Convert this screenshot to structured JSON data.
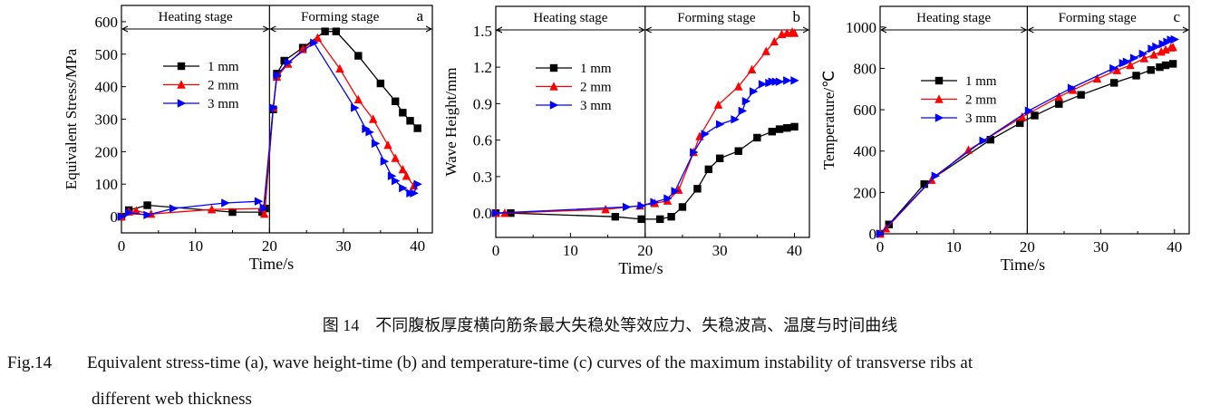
{
  "caption": {
    "chinese": "图 14　不同腹板厚度横向筋条最大失稳处等效应力、失稳波高、温度与时间曲线",
    "label": "Fig.14",
    "english_line1": "Equivalent stress-time (a), wave height-time (b) and temperature-time (c) curves of the maximum instability of transverse ribs at",
    "english_line2": "different web thickness"
  },
  "colors": {
    "1 mm": "#000000",
    "2 mm": "#ff0000",
    "3 mm": "#0000ff"
  },
  "chart_data": [
    {
      "type": "line",
      "panel": "a",
      "xlabel": "Time/s",
      "ylabel": "Equivalent Stress/MPa",
      "xlim": [
        0,
        42
      ],
      "ylim": [
        -50,
        650
      ],
      "xticks": [
        0,
        10,
        20,
        30,
        40
      ],
      "yticks": [
        0,
        100,
        200,
        300,
        400,
        500,
        600
      ],
      "stage_labels": [
        "Heating stage",
        "Forming stage"
      ],
      "stage_boundary": 20,
      "legend": "upper-left",
      "series": [
        {
          "name": "1 mm",
          "marker": "square",
          "x": [
            0,
            1,
            3.5,
            15,
            19,
            19.4,
            20.5,
            21,
            22,
            24.5,
            27.5,
            29,
            32,
            35,
            37,
            38,
            39,
            40
          ],
          "y": [
            0,
            20,
            35,
            14,
            14,
            25,
            330,
            440,
            480,
            520,
            570,
            570,
            495,
            410,
            355,
            320,
            295,
            272
          ]
        },
        {
          "name": "2 mm",
          "marker": "triangle-up",
          "x": [
            0,
            1,
            2,
            4,
            12.2,
            19,
            19.3,
            20.5,
            21,
            22.5,
            24.5,
            26.5,
            29.5,
            32,
            34,
            36,
            37,
            38,
            38.5,
            39.5
          ],
          "y": [
            0,
            15,
            18,
            8,
            22,
            25,
            8,
            335,
            430,
            470,
            515,
            550,
            455,
            360,
            300,
            220,
            180,
            145,
            125,
            95
          ]
        },
        {
          "name": "3 mm",
          "marker": "triangle-right",
          "x": [
            0,
            1,
            3.5,
            7,
            14,
            18.5,
            19.2,
            20.5,
            21,
            22.5,
            26,
            31.5,
            33,
            33.5,
            34.3,
            35.5,
            36.5,
            37,
            38,
            39,
            39.5,
            40
          ],
          "y": [
            0,
            12,
            5,
            25,
            42,
            47,
            25,
            335,
            435,
            475,
            535,
            335,
            270,
            260,
            225,
            170,
            125,
            110,
            88,
            72,
            72,
            100
          ]
        }
      ]
    },
    {
      "type": "line",
      "panel": "b",
      "xlabel": "Time/s",
      "ylabel": "Wave Height/mm",
      "xlim": [
        0,
        42
      ],
      "ylim": [
        -0.2,
        1.7
      ],
      "xticks": [
        0,
        10,
        20,
        30,
        40
      ],
      "yticks": [
        0.0,
        0.3,
        0.6,
        0.9,
        1.2,
        1.5
      ],
      "ytick_labels": [
        "0.0",
        "0.3",
        "0.6",
        "0.9",
        "1.2",
        "1.5"
      ],
      "stage_labels": [
        "Heating stage",
        "Forming stage"
      ],
      "stage_boundary": 20,
      "legend": "upper-left",
      "series": [
        {
          "name": "1 mm",
          "marker": "square",
          "x": [
            0,
            2,
            16,
            19.5,
            22,
            23.5,
            25,
            27,
            28.5,
            30,
            32.5,
            35,
            37,
            38,
            39,
            40
          ],
          "y": [
            0,
            0,
            -0.03,
            -0.05,
            -0.05,
            -0.03,
            0.05,
            0.2,
            0.36,
            0.45,
            0.51,
            0.62,
            0.67,
            0.69,
            0.7,
            0.71
          ]
        },
        {
          "name": "2 mm",
          "marker": "triangle-up",
          "x": [
            0,
            1.2,
            14.7,
            19.3,
            21.3,
            23,
            24.5,
            26.5,
            27.3,
            29.8,
            32.5,
            34.3,
            36.2,
            37.3,
            38.3,
            39,
            39.7,
            40
          ],
          "y": [
            0,
            0,
            0.03,
            0.06,
            0.08,
            0.1,
            0.19,
            0.5,
            0.63,
            0.89,
            1.04,
            1.18,
            1.33,
            1.41,
            1.47,
            1.48,
            1.49,
            1.48
          ]
        },
        {
          "name": "3 mm",
          "marker": "triangle-right",
          "x": [
            0,
            17.5,
            19.5,
            21.2,
            23,
            24,
            26.5,
            28,
            30,
            32,
            33,
            33.5,
            34.5,
            35.7,
            36.6,
            37,
            37.5,
            38,
            39,
            40
          ],
          "y": [
            0,
            0.05,
            0.06,
            0.09,
            0.12,
            0.18,
            0.5,
            0.65,
            0.73,
            0.77,
            0.84,
            0.92,
            1.0,
            1.06,
            1.07,
            1.08,
            1.08,
            1.08,
            1.09,
            1.09
          ]
        }
      ]
    },
    {
      "type": "line",
      "panel": "c",
      "xlabel": "Time/s",
      "ylabel": "Temperature/℃",
      "xlim": [
        0,
        42
      ],
      "ylim": [
        0,
        1100
      ],
      "xticks": [
        0,
        10,
        20,
        30,
        40
      ],
      "yticks": [
        0,
        200,
        400,
        600,
        800,
        1000
      ],
      "stage_labels": [
        "Heating stage",
        "Forming stage"
      ],
      "stage_boundary": 20,
      "legend": "upper-left",
      "series": [
        {
          "name": "1 mm",
          "marker": "square",
          "x": [
            0,
            1.2,
            6,
            15,
            19,
            21,
            24.3,
            27.3,
            31.8,
            34.8,
            36.8,
            38,
            38.8,
            39.8
          ],
          "y": [
            0,
            45,
            240,
            455,
            535,
            572,
            628,
            672,
            730,
            765,
            792,
            806,
            815,
            822
          ]
        },
        {
          "name": "2 mm",
          "marker": "triangle-up",
          "x": [
            0,
            0.8,
            7,
            12,
            19.3,
            24.3,
            26.2,
            29.5,
            32.2,
            34,
            35.9,
            37.2,
            38.2,
            38.8,
            39.5,
            39.8
          ],
          "y": [
            0,
            25,
            260,
            405,
            565,
            662,
            695,
            750,
            790,
            815,
            848,
            866,
            880,
            890,
            900,
            902
          ]
        },
        {
          "name": "3 mm",
          "marker": "triangle-right",
          "x": [
            0,
            7.5,
            14,
            20.2,
            26,
            31.7,
            33,
            33.5,
            34.5,
            35.7,
            36.9,
            37.5,
            38.4,
            39,
            39.5,
            40
          ],
          "y": [
            0,
            280,
            450,
            595,
            705,
            800,
            825,
            832,
            850,
            870,
            895,
            905,
            918,
            928,
            938,
            940
          ]
        }
      ]
    }
  ]
}
